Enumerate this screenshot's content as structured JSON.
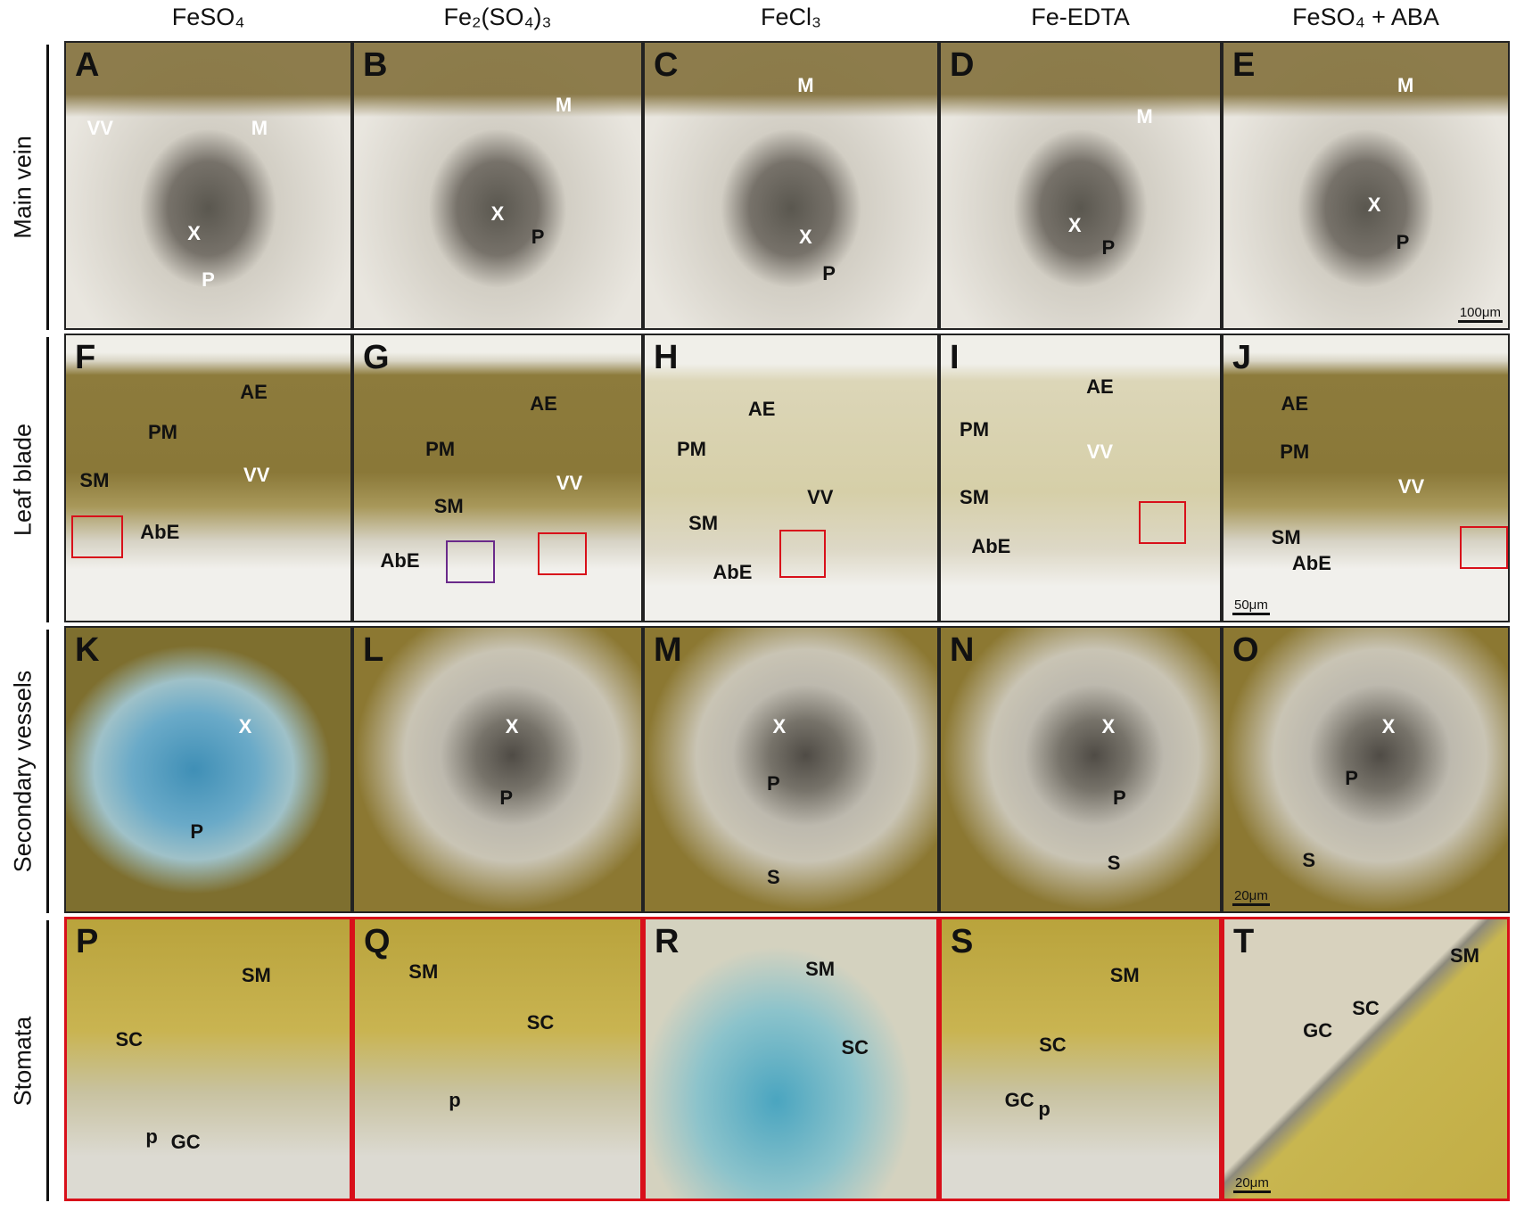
{
  "column_headers": [
    "FeSO₄",
    "Fe₂(SO₄)₃",
    "FeCl₃",
    "Fe-EDTA",
    "FeSO₄ + ABA"
  ],
  "row_labels": [
    "Main vein",
    "Leaf blade",
    "Secondary vessels",
    "Stomata"
  ],
  "panels": [
    {
      "letter": "A",
      "labels": [
        "VV",
        "M",
        "X",
        "P"
      ]
    },
    {
      "letter": "B",
      "labels": [
        "M",
        "X",
        "P"
      ]
    },
    {
      "letter": "C",
      "labels": [
        "M",
        "X",
        "P"
      ]
    },
    {
      "letter": "D",
      "labels": [
        "M",
        "X",
        "P"
      ]
    },
    {
      "letter": "E",
      "labels": [
        "M",
        "X",
        "P"
      ],
      "scale_bar": "100μm"
    },
    {
      "letter": "F",
      "labels": [
        "AE",
        "PM",
        "SM",
        "VV",
        "AbE"
      ]
    },
    {
      "letter": "G",
      "labels": [
        "AE",
        "PM",
        "SM",
        "VV",
        "AbE"
      ]
    },
    {
      "letter": "H",
      "labels": [
        "AE",
        "PM",
        "SM",
        "VV",
        "AbE"
      ]
    },
    {
      "letter": "I",
      "labels": [
        "AE",
        "PM",
        "SM",
        "VV",
        "AbE"
      ]
    },
    {
      "letter": "J",
      "labels": [
        "AE",
        "PM",
        "SM",
        "VV",
        "AbE"
      ],
      "scale_bar": "50μm"
    },
    {
      "letter": "K",
      "labels": [
        "X",
        "P"
      ]
    },
    {
      "letter": "L",
      "labels": [
        "X",
        "P"
      ]
    },
    {
      "letter": "M",
      "labels": [
        "X",
        "P",
        "S"
      ]
    },
    {
      "letter": "N",
      "labels": [
        "X",
        "P",
        "S"
      ]
    },
    {
      "letter": "O",
      "labels": [
        "X",
        "P",
        "S"
      ],
      "scale_bar": "20μm"
    },
    {
      "letter": "P",
      "labels": [
        "SM",
        "SC",
        "p",
        "GC"
      ]
    },
    {
      "letter": "Q",
      "labels": [
        "SM",
        "SC",
        "p"
      ]
    },
    {
      "letter": "R",
      "labels": [
        "SM",
        "SC"
      ]
    },
    {
      "letter": "S",
      "labels": [
        "SM",
        "SC",
        "GC",
        "p"
      ]
    },
    {
      "letter": "T",
      "labels": [
        "SM",
        "SC",
        "GC"
      ],
      "scale_bar": "20μm"
    }
  ]
}
